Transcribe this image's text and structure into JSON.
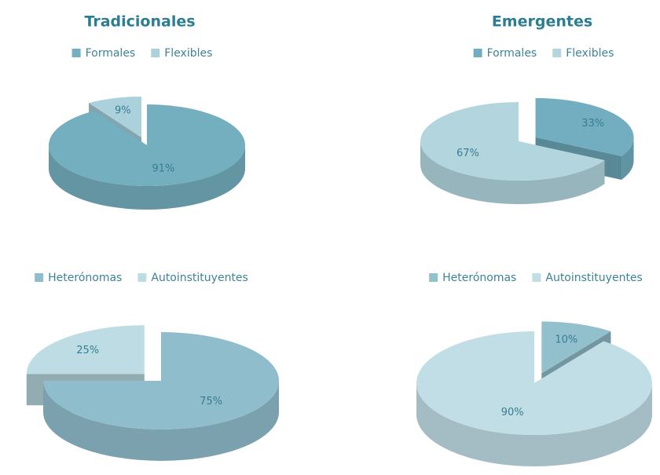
{
  "chart_data": [
    {
      "type": "pie",
      "title": "Tradicionales",
      "categories": [
        "Formales",
        "Flexibles"
      ],
      "values": [
        91,
        9
      ],
      "value_labels": [
        "91%",
        "9%"
      ],
      "colors": [
        "#74afc0",
        "#abd2dc"
      ],
      "legend": "top"
    },
    {
      "type": "pie",
      "title": "Emergentes",
      "categories": [
        "Formales",
        "Flexibles"
      ],
      "values": [
        33,
        67
      ],
      "value_labels": [
        "33%",
        "67%"
      ],
      "colors": [
        "#72aec0",
        "#b2d5de"
      ],
      "legend": "top"
    },
    {
      "type": "pie",
      "categories": [
        "Heterónomas",
        "Autoinstituyentes"
      ],
      "values": [
        75,
        25
      ],
      "value_labels": [
        "75%",
        "25%"
      ],
      "colors": [
        "#90bdcb",
        "#bddce4"
      ],
      "legend": "top"
    },
    {
      "type": "pie",
      "categories": [
        "Heterónomas",
        "Autoinstituyentes"
      ],
      "values": [
        10,
        90
      ],
      "value_labels": [
        "10%",
        "90%"
      ],
      "colors": [
        "#93c0cd",
        "#c1dee6"
      ],
      "legend": "top"
    }
  ]
}
